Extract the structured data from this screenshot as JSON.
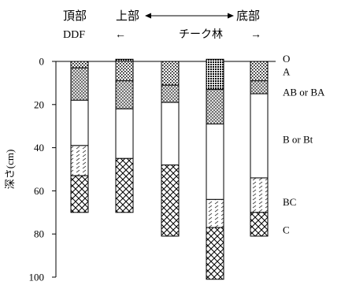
{
  "chart_data": {
    "type": "bar",
    "subtype": "stacked-soil-profile",
    "ylabel": "深さ(cm)",
    "ylim": [
      0,
      100
    ],
    "y_inverted": true,
    "yticks": [
      "0",
      "20",
      "40",
      "60",
      "80",
      "100"
    ],
    "ytick_values": [
      0,
      20,
      40,
      60,
      80,
      100
    ],
    "header": {
      "first_group": {
        "line1": "頂部",
        "line2": "DDF"
      },
      "top_label": "上部",
      "bottom_label": "底部",
      "forest_label": "チーク林",
      "left_arrow": "←",
      "right_arrow": "→"
    },
    "horizon_labels": [
      {
        "text": "O",
        "depth": -1.5
      },
      {
        "text": "A",
        "depth": 4.5
      },
      {
        "text": "AB or BA",
        "depth": 14
      },
      {
        "text": "B or Bt",
        "depth": 36
      },
      {
        "text": "BC",
        "depth": 65
      },
      {
        "text": "C",
        "depth": 78
      }
    ],
    "horizons": [
      {
        "name": "O",
        "pattern": "dense-dots"
      },
      {
        "name": "A",
        "pattern": "dots"
      },
      {
        "name": "AB or BA",
        "pattern": "cross-light"
      },
      {
        "name": "B or Bt",
        "pattern": "white"
      },
      {
        "name": "BC",
        "pattern": "dashes"
      },
      {
        "name": "C",
        "pattern": "crosshatch"
      }
    ],
    "profiles": [
      {
        "layers": [
          {
            "horizon": "A",
            "top": 0,
            "bottom": 3
          },
          {
            "horizon": "AB or BA",
            "top": 3,
            "bottom": 18
          },
          {
            "horizon": "B or Bt",
            "top": 18,
            "bottom": 39
          },
          {
            "horizon": "BC",
            "top": 39,
            "bottom": 53
          },
          {
            "horizon": "C",
            "top": 53,
            "bottom": 70
          }
        ]
      },
      {
        "layers": [
          {
            "horizon": "O",
            "top": -1,
            "bottom": 0
          },
          {
            "horizon": "A",
            "top": 0,
            "bottom": 9
          },
          {
            "horizon": "AB or BA",
            "top": 9,
            "bottom": 22
          },
          {
            "horizon": "B or Bt",
            "top": 22,
            "bottom": 45
          },
          {
            "horizon": "C",
            "top": 45,
            "bottom": 70
          }
        ]
      },
      {
        "layers": [
          {
            "horizon": "A",
            "top": 0,
            "bottom": 11
          },
          {
            "horizon": "AB or BA",
            "top": 11,
            "bottom": 19
          },
          {
            "horizon": "B or Bt",
            "top": 19,
            "bottom": 48
          },
          {
            "horizon": "C",
            "top": 48,
            "bottom": 81
          }
        ]
      },
      {
        "layers": [
          {
            "horizon": "O",
            "top": -1,
            "bottom": 13
          },
          {
            "horizon": "AB or BA",
            "top": 13,
            "bottom": 29
          },
          {
            "horizon": "B or Bt",
            "top": 29,
            "bottom": 64
          },
          {
            "horizon": "BC",
            "top": 64,
            "bottom": 77
          },
          {
            "horizon": "C",
            "top": 77,
            "bottom": 101
          }
        ]
      },
      {
        "layers": [
          {
            "horizon": "A",
            "top": 0,
            "bottom": 9
          },
          {
            "horizon": "AB or BA",
            "top": 9,
            "bottom": 15
          },
          {
            "horizon": "B or Bt",
            "top": 15,
            "bottom": 54
          },
          {
            "horizon": "BC",
            "top": 54,
            "bottom": 70
          },
          {
            "horizon": "C",
            "top": 70,
            "bottom": 81
          }
        ]
      }
    ]
  }
}
